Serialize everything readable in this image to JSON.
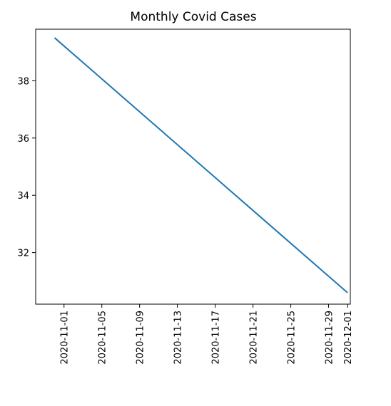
{
  "chart_data": {
    "type": "line",
    "title": "Monthly Covid Cases",
    "xlabel": "",
    "ylabel": "",
    "series": [
      {
        "x": [
          "2020-10-31",
          "2020-12-01"
        ],
        "y": [
          39.5,
          30.6
        ],
        "color": "#1f77b4"
      }
    ],
    "xlim": [
      "2020-10-29",
      "2020-12-01"
    ],
    "ylim": [
      30.2,
      39.8
    ],
    "x_ticks": [
      "2020-11-01",
      "2020-11-05",
      "2020-11-09",
      "2020-11-13",
      "2020-11-17",
      "2020-11-21",
      "2020-11-25",
      "2020-11-29",
      "2020-12-01"
    ],
    "y_ticks": [
      32,
      34,
      36,
      38
    ],
    "grid": false,
    "x_tick_rotation": "vertical"
  }
}
